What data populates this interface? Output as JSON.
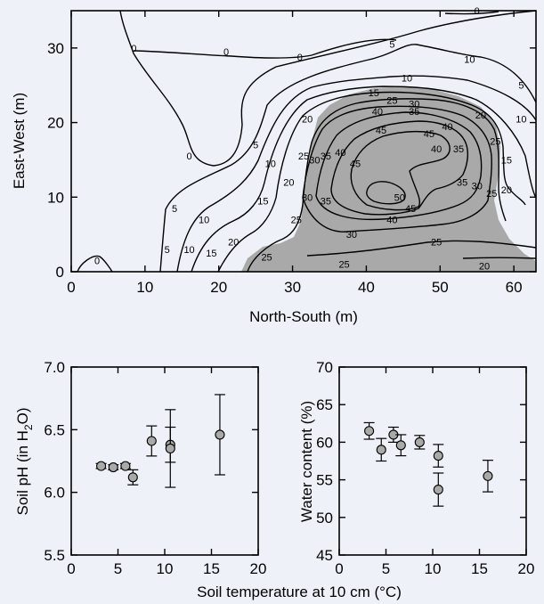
{
  "chart_data": [
    {
      "type": "contour",
      "xlabel": "North-South (m)",
      "ylabel": "East-West (m)",
      "xlim": [
        0,
        63
      ],
      "ylim": [
        0,
        35
      ],
      "xticks": [
        0,
        10,
        20,
        30,
        40,
        50,
        60
      ],
      "yticks": [
        0,
        10,
        20,
        30
      ],
      "shaded_region": "grey area, approx. x 22–63 m, y 0–25 m",
      "contour_levels": [
        0,
        5,
        10,
        15,
        20,
        25,
        30,
        35,
        40,
        45,
        50
      ],
      "contour_labels": [
        {
          "text": "0",
          "x": 3.5,
          "y": 1.5
        },
        {
          "text": "0",
          "x": 8.5,
          "y": 30
        },
        {
          "text": "0",
          "x": 21,
          "y": 29.5
        },
        {
          "text": "0",
          "x": 31,
          "y": 28.8
        },
        {
          "text": "0",
          "x": 16,
          "y": 15.5
        },
        {
          "text": "0",
          "x": 55,
          "y": 35
        },
        {
          "text": "5",
          "x": 43.5,
          "y": 30.5
        },
        {
          "text": "5",
          "x": 25,
          "y": 17
        },
        {
          "text": "5",
          "x": 14,
          "y": 8.5
        },
        {
          "text": "5",
          "x": 13,
          "y": 3
        },
        {
          "text": "5",
          "x": 61,
          "y": 25
        },
        {
          "text": "10",
          "x": 54,
          "y": 28.5
        },
        {
          "text": "10",
          "x": 45.5,
          "y": 26
        },
        {
          "text": "10",
          "x": 27,
          "y": 14.5
        },
        {
          "text": "10",
          "x": 18,
          "y": 7
        },
        {
          "text": "10",
          "x": 16,
          "y": 3
        },
        {
          "text": "10",
          "x": 61,
          "y": 20.5
        },
        {
          "text": "15",
          "x": 41,
          "y": 24
        },
        {
          "text": "15",
          "x": 26,
          "y": 9.5
        },
        {
          "text": "15",
          "x": 19,
          "y": 2.5
        },
        {
          "text": "15",
          "x": 59,
          "y": 15
        },
        {
          "text": "20",
          "x": 32,
          "y": 20.5
        },
        {
          "text": "20",
          "x": 29.5,
          "y": 12
        },
        {
          "text": "20",
          "x": 22,
          "y": 4
        },
        {
          "text": "20",
          "x": 55.5,
          "y": 21
        },
        {
          "text": "20",
          "x": 59,
          "y": 11
        },
        {
          "text": "20",
          "x": 56,
          "y": 0.8
        },
        {
          "text": "25",
          "x": 26.5,
          "y": 2
        },
        {
          "text": "25",
          "x": 30.5,
          "y": 7
        },
        {
          "text": "25",
          "x": 31.5,
          "y": 15.5
        },
        {
          "text": "25",
          "x": 43.5,
          "y": 23
        },
        {
          "text": "25",
          "x": 57.5,
          "y": 17.5
        },
        {
          "text": "25",
          "x": 57,
          "y": 10.5
        },
        {
          "text": "25",
          "x": 49.5,
          "y": 4
        },
        {
          "text": "25",
          "x": 37,
          "y": 1
        },
        {
          "text": "30",
          "x": 33,
          "y": 15
        },
        {
          "text": "30",
          "x": 32,
          "y": 10
        },
        {
          "text": "30",
          "x": 38,
          "y": 5
        },
        {
          "text": "30",
          "x": 46.5,
          "y": 22.5
        },
        {
          "text": "30",
          "x": 55,
          "y": 11.5
        },
        {
          "text": "35",
          "x": 34.5,
          "y": 15.5
        },
        {
          "text": "35",
          "x": 34.5,
          "y": 9.5
        },
        {
          "text": "35",
          "x": 46.5,
          "y": 21.5
        },
        {
          "text": "35",
          "x": 52.5,
          "y": 16.5
        },
        {
          "text": "35",
          "x": 53,
          "y": 12
        },
        {
          "text": "40",
          "x": 36.5,
          "y": 16
        },
        {
          "text": "40",
          "x": 41.5,
          "y": 21.5
        },
        {
          "text": "40",
          "x": 51,
          "y": 19.5
        },
        {
          "text": "40",
          "x": 49.5,
          "y": 16.5
        },
        {
          "text": "40",
          "x": 43.5,
          "y": 7
        },
        {
          "text": "45",
          "x": 42,
          "y": 19
        },
        {
          "text": "45",
          "x": 38.5,
          "y": 14.5
        },
        {
          "text": "45",
          "x": 48.5,
          "y": 18.5
        },
        {
          "text": "45",
          "x": 46,
          "y": 8.5
        },
        {
          "text": "50",
          "x": 44.5,
          "y": 10
        }
      ]
    },
    {
      "type": "scatter",
      "xlabel": "",
      "ylabel": "Soil pH (in H2O)",
      "xlim": [
        0,
        20
      ],
      "ylim": [
        5.5,
        7.0
      ],
      "xticks": [
        0,
        5,
        10,
        15,
        20
      ],
      "yticks": [
        5.5,
        6.0,
        6.5,
        7.0
      ],
      "points": [
        {
          "x": 3.2,
          "y": 6.21,
          "err": 0.02
        },
        {
          "x": 4.5,
          "y": 6.2,
          "err": 0.02
        },
        {
          "x": 5.8,
          "y": 6.21,
          "err": 0.02
        },
        {
          "x": 6.6,
          "y": 6.12,
          "err": 0.06
        },
        {
          "x": 8.6,
          "y": 6.41,
          "err": 0.12
        },
        {
          "x": 10.6,
          "y": 6.38,
          "err": 0.14
        },
        {
          "x": 10.6,
          "y": 6.35,
          "err": 0.31
        },
        {
          "x": 15.9,
          "y": 6.46,
          "err": 0.32
        }
      ]
    },
    {
      "type": "scatter",
      "xlabel": "",
      "ylabel": "Water content (%)",
      "xlim": [
        0,
        20
      ],
      "ylim": [
        45,
        70
      ],
      "xticks": [
        0,
        5,
        10,
        15,
        20
      ],
      "yticks": [
        45,
        50,
        55,
        60,
        65,
        70
      ],
      "points": [
        {
          "x": 3.2,
          "y": 61.5,
          "err": 1.1
        },
        {
          "x": 4.5,
          "y": 59,
          "err": 1.5
        },
        {
          "x": 5.8,
          "y": 61,
          "err": 1.0
        },
        {
          "x": 6.6,
          "y": 59.6,
          "err": 1.4
        },
        {
          "x": 8.6,
          "y": 60,
          "err": 0.9
        },
        {
          "x": 10.6,
          "y": 58.2,
          "err": 1.5
        },
        {
          "x": 10.6,
          "y": 53.7,
          "err": 2.2
        },
        {
          "x": 15.9,
          "y": 55.5,
          "err": 2.1
        }
      ]
    }
  ],
  "shared_xlabel": "Soil temperature at 10 cm (°C)",
  "style": {
    "marker_fill": "#a9a9a9",
    "shade": "#a9a9a9",
    "background": "#eef2f8"
  }
}
